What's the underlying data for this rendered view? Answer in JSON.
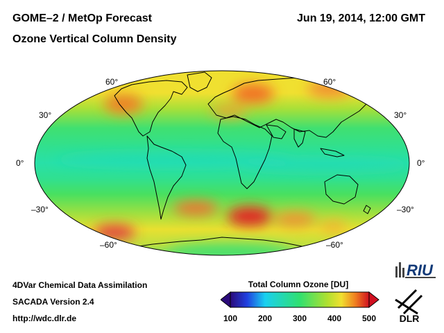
{
  "header": {
    "title": "GOME–2 / MetOp Forecast",
    "subtitle": "Ozone Vertical Column Density",
    "datetime": "Jun 19, 2014, 12:00 GMT"
  },
  "map": {
    "projection": "Hammer-Aitoff global",
    "latitude_labels": {
      "left": [
        "60°",
        "30°",
        "0°",
        "–30°",
        "–60°"
      ],
      "right": [
        "60°",
        "30°",
        "0°",
        "–30°",
        "–60°"
      ]
    },
    "colors": {
      "ozone_100": "#2a0a7a",
      "ozone_200": "#1ad0f0",
      "ozone_300": "#30e070",
      "ozone_400": "#f0e030",
      "ozone_500": "#d01020",
      "coastline": "#000000"
    }
  },
  "colorbar": {
    "title": "Total Column Ozone [DU]",
    "ticks": [
      "100",
      "200",
      "300",
      "400",
      "500"
    ],
    "range": [
      100,
      500
    ],
    "unit": "DU"
  },
  "footer": {
    "line1": "4DVar Chemical Data Assimilation",
    "line2": "SACADA Version 2.4",
    "line3": "http://wdc.dlr.de"
  },
  "logos": {
    "riu": "RIU",
    "dlr": "DLR"
  }
}
